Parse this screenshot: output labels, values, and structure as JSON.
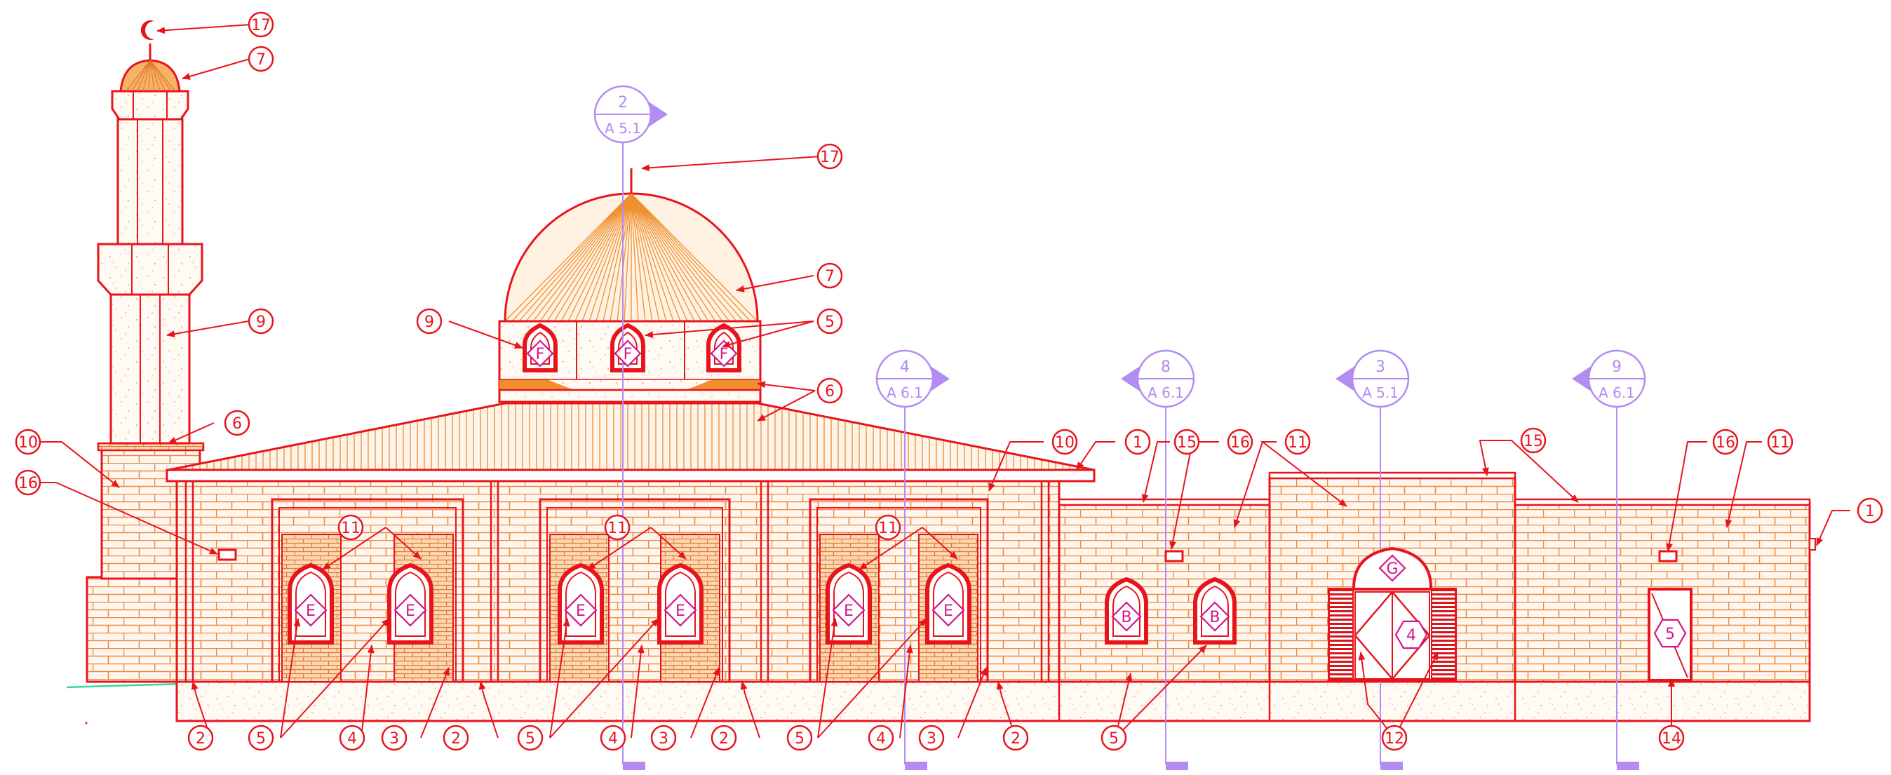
{
  "colors": {
    "outline": "#e8141c",
    "brick_mortar": "#ec8a40",
    "brick_fill": "#fff7ef",
    "speckle": "#e9a35f",
    "roof": "#f0a05a",
    "section": "#b28cf0",
    "tag": "#d4148c",
    "ground": "#39d79a"
  },
  "callouts": {
    "n1": "1",
    "n2": "2",
    "n3": "3",
    "n4": "4",
    "n5": "5",
    "n6": "6",
    "n7": "7",
    "n9": "9",
    "n10": "10",
    "n11": "11",
    "n12": "12",
    "n14": "14",
    "n15": "15",
    "n16": "16",
    "n17": "17"
  },
  "section_markers": [
    {
      "id": "s2",
      "num": "2",
      "sheet": "A 5.1"
    },
    {
      "id": "s4",
      "num": "4",
      "sheet": "A 6.1"
    },
    {
      "id": "s8",
      "num": "8",
      "sheet": "A 6.1"
    },
    {
      "id": "s3",
      "num": "3",
      "sheet": "A 5.1"
    },
    {
      "id": "s9",
      "num": "9",
      "sheet": "A 6.1"
    }
  ],
  "tags": {
    "window_e": "E",
    "window_f": "F",
    "window_b": "B",
    "door_main": "4",
    "door_side": "5",
    "fanlight": "G"
  }
}
